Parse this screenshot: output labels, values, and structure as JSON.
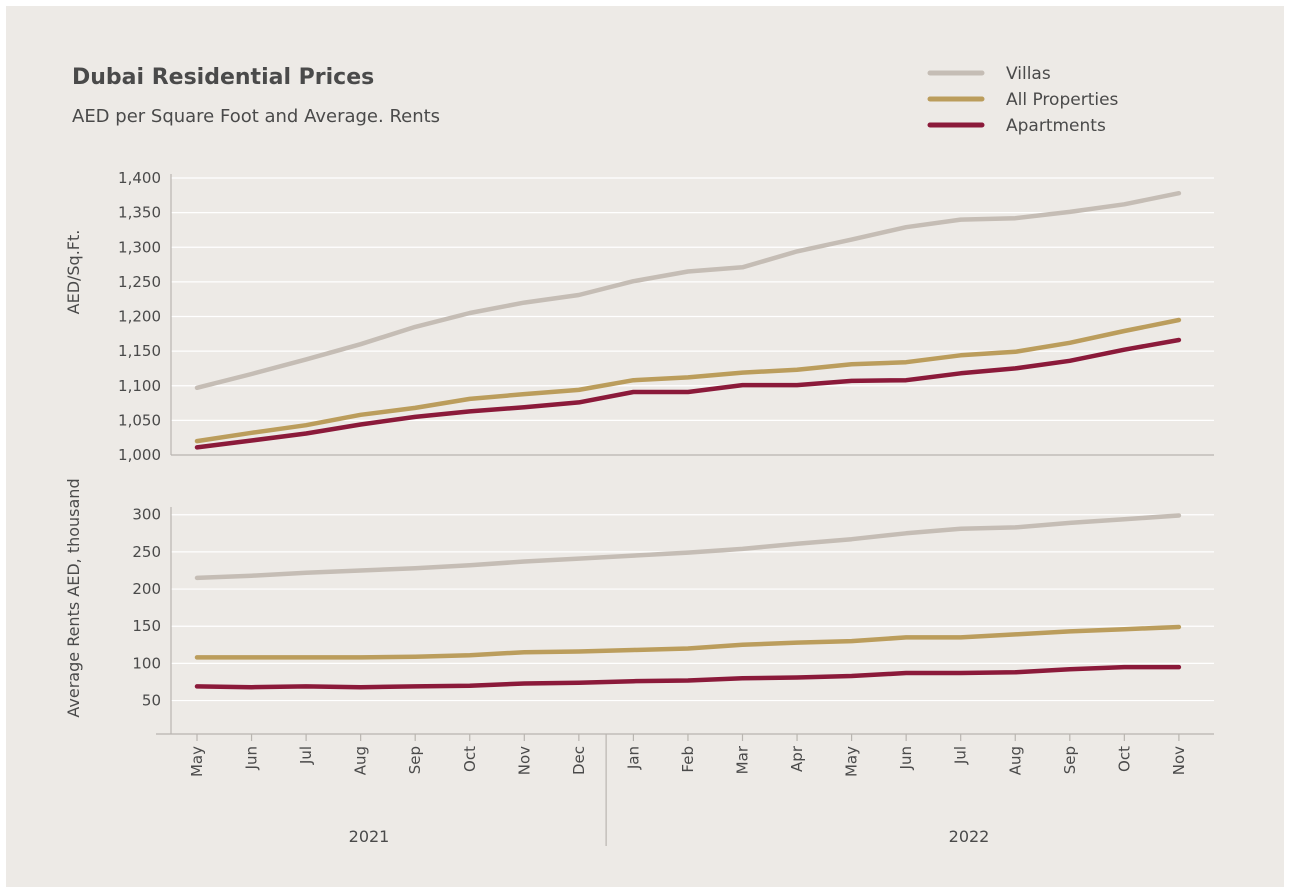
{
  "title": "Dubai Residential Prices",
  "subtitle": "AED per Square Foot and Average. Rents",
  "legend": [
    {
      "label": "Villas",
      "color": "#c5bdb5"
    },
    {
      "label": "All Properties",
      "color": "#bb9d5c"
    },
    {
      "label": "Apartments",
      "color": "#8b1a3a"
    }
  ],
  "years": [
    "2021",
    "2022"
  ],
  "chart_data": [
    {
      "type": "line",
      "ylabel": "AED/Sq.Ft.",
      "ylim": [
        1000,
        1400
      ],
      "yticks": [
        "1,000",
        "1,050",
        "1,100",
        "1,150",
        "1,200",
        "1,250",
        "1,300",
        "1,350",
        "1,400"
      ],
      "categories": [
        "May",
        "Jun",
        "Jul",
        "Aug",
        "Sep",
        "Oct",
        "Nov",
        "Dec",
        "Jan",
        "Feb",
        "Mar",
        "Apr",
        "May",
        "Jun",
        "Jul",
        "Aug",
        "Sep",
        "Oct",
        "Nov"
      ],
      "series": [
        {
          "name": "Villas",
          "color": "#c5bdb5",
          "values": [
            1097,
            1117,
            1138,
            1160,
            1185,
            1205,
            1220,
            1231,
            1251,
            1265,
            1271,
            1294,
            1311,
            1329,
            1340,
            1342,
            1351,
            1362,
            1378
          ]
        },
        {
          "name": "All Properties",
          "color": "#bb9d5c",
          "values": [
            1020,
            1032,
            1043,
            1058,
            1068,
            1081,
            1088,
            1094,
            1108,
            1112,
            1119,
            1123,
            1131,
            1134,
            1144,
            1149,
            1162,
            1179,
            1195
          ]
        },
        {
          "name": "Apartments",
          "color": "#8b1a3a",
          "values": [
            1011,
            1021,
            1031,
            1044,
            1055,
            1063,
            1069,
            1076,
            1091,
            1091,
            1101,
            1101,
            1107,
            1108,
            1118,
            1125,
            1136,
            1152,
            1166
          ]
        }
      ]
    },
    {
      "type": "line",
      "ylabel": "Average Rents AED, thousand",
      "ylim": [
        5,
        305
      ],
      "yticks": [
        "50",
        "100",
        "150",
        "200",
        "250",
        "300"
      ],
      "categories": [
        "May",
        "Jun",
        "Jul",
        "Aug",
        "Sep",
        "Oct",
        "Nov",
        "Dec",
        "Jan",
        "Feb",
        "Mar",
        "Apr",
        "May",
        "Jun",
        "Jul",
        "Aug",
        "Sep",
        "Oct",
        "Nov"
      ],
      "series": [
        {
          "name": "Villas",
          "color": "#c5bdb5",
          "values": [
            215,
            218,
            222,
            225,
            228,
            232,
            237,
            241,
            245,
            249,
            254,
            261,
            267,
            275,
            281,
            283,
            289,
            294,
            299
          ]
        },
        {
          "name": "All Properties",
          "color": "#bb9d5c",
          "values": [
            108,
            108,
            108,
            108,
            109,
            111,
            115,
            116,
            118,
            120,
            125,
            128,
            130,
            135,
            135,
            139,
            143,
            146,
            149
          ]
        },
        {
          "name": "Apartments",
          "color": "#8b1a3a",
          "values": [
            69,
            68,
            69,
            68,
            69,
            70,
            73,
            74,
            76,
            77,
            80,
            81,
            83,
            87,
            87,
            88,
            92,
            95,
            95
          ]
        }
      ]
    }
  ]
}
